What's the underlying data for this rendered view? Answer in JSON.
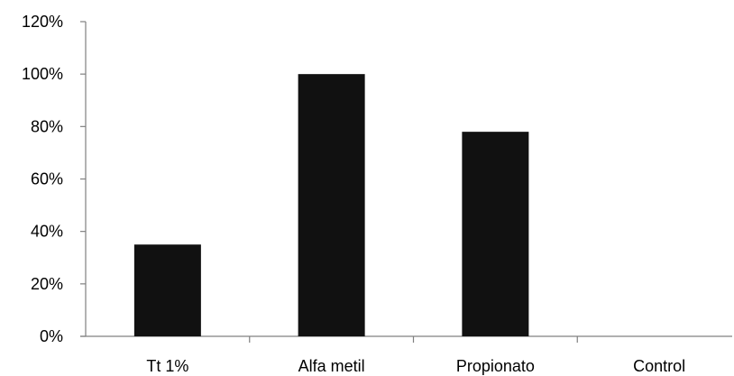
{
  "chart_data": {
    "type": "bar",
    "categories": [
      "Tt 1%",
      "Alfa metil",
      "Propionato",
      "Control"
    ],
    "values": [
      35,
      100,
      78,
      0
    ],
    "ylim": [
      0,
      120
    ],
    "y_ticks": [
      0,
      20,
      40,
      60,
      80,
      100,
      120
    ],
    "y_tick_labels": [
      "0%",
      "20%",
      "40%",
      "60%",
      "80%",
      "100%",
      "120%"
    ],
    "grid": false,
    "legend": "none",
    "bar_color": "#111111",
    "axis_color": "#808080"
  }
}
